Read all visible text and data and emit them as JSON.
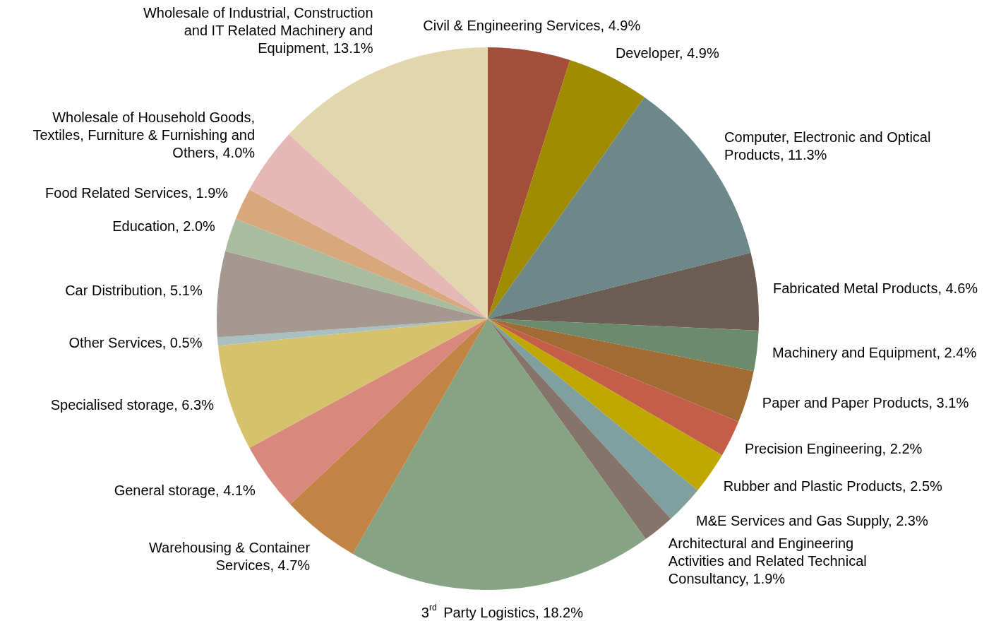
{
  "chart_data": {
    "type": "pie",
    "categories": [
      "Civil & Engineering Services",
      "Developer",
      "Computer, Electronic and Optical Products",
      "Fabricated Metal Products",
      "Machinery and Equipment",
      "Paper and Paper Products",
      "Precision Engineering",
      "Rubber and Plastic Products",
      "M&E Services and Gas Supply",
      "Architectural and Engineering Activities and Related Technical Consultancy",
      "3$^{rd}$ Party Logistics",
      "Warehousing & Container Services",
      "General storage",
      "Specialised storage",
      "Other Services",
      "Car Distribution",
      "Education",
      "Food Related Services",
      "Wholesale of Household Goods, Textiles, Furniture & Furnishing and Others",
      "Wholesale of Industrial, Construction and IT Related Machinery and Equipment"
    ],
    "values": [
      4.9,
      4.9,
      11.3,
      4.6,
      2.4,
      3.1,
      2.2,
      2.5,
      2.3,
      1.9,
      18.2,
      4.7,
      4.1,
      6.3,
      0.5,
      5.1,
      2.0,
      1.9,
      4.0,
      13.1
    ],
    "value_labels": [
      "4.9%",
      "4.9%",
      "11.3%",
      "4.6%",
      "2.4%",
      "3.1%",
      "2.2%",
      "2.5%",
      "2.3%",
      "1.9%",
      "18.2%",
      "4.7%",
      "4.1%",
      "6.3%",
      "0.5%",
      "5.1%",
      "2.0%",
      "1.9%",
      "4.0%",
      "13.1%"
    ],
    "colors": [
      "#a34e3a",
      "#a08c00",
      "#6c8888",
      "#6c5e54",
      "#6c8a6c",
      "#a06c34",
      "#c45e48",
      "#c0a800",
      "#80a0a0",
      "#86746a",
      "#86a484",
      "#c28444",
      "#d8887c",
      "#d6c26c",
      "#a8c0c0",
      "#a49890",
      "#a8bca0",
      "#d8a87c",
      "#e4b8b4",
      "#e2d6ac"
    ]
  }
}
